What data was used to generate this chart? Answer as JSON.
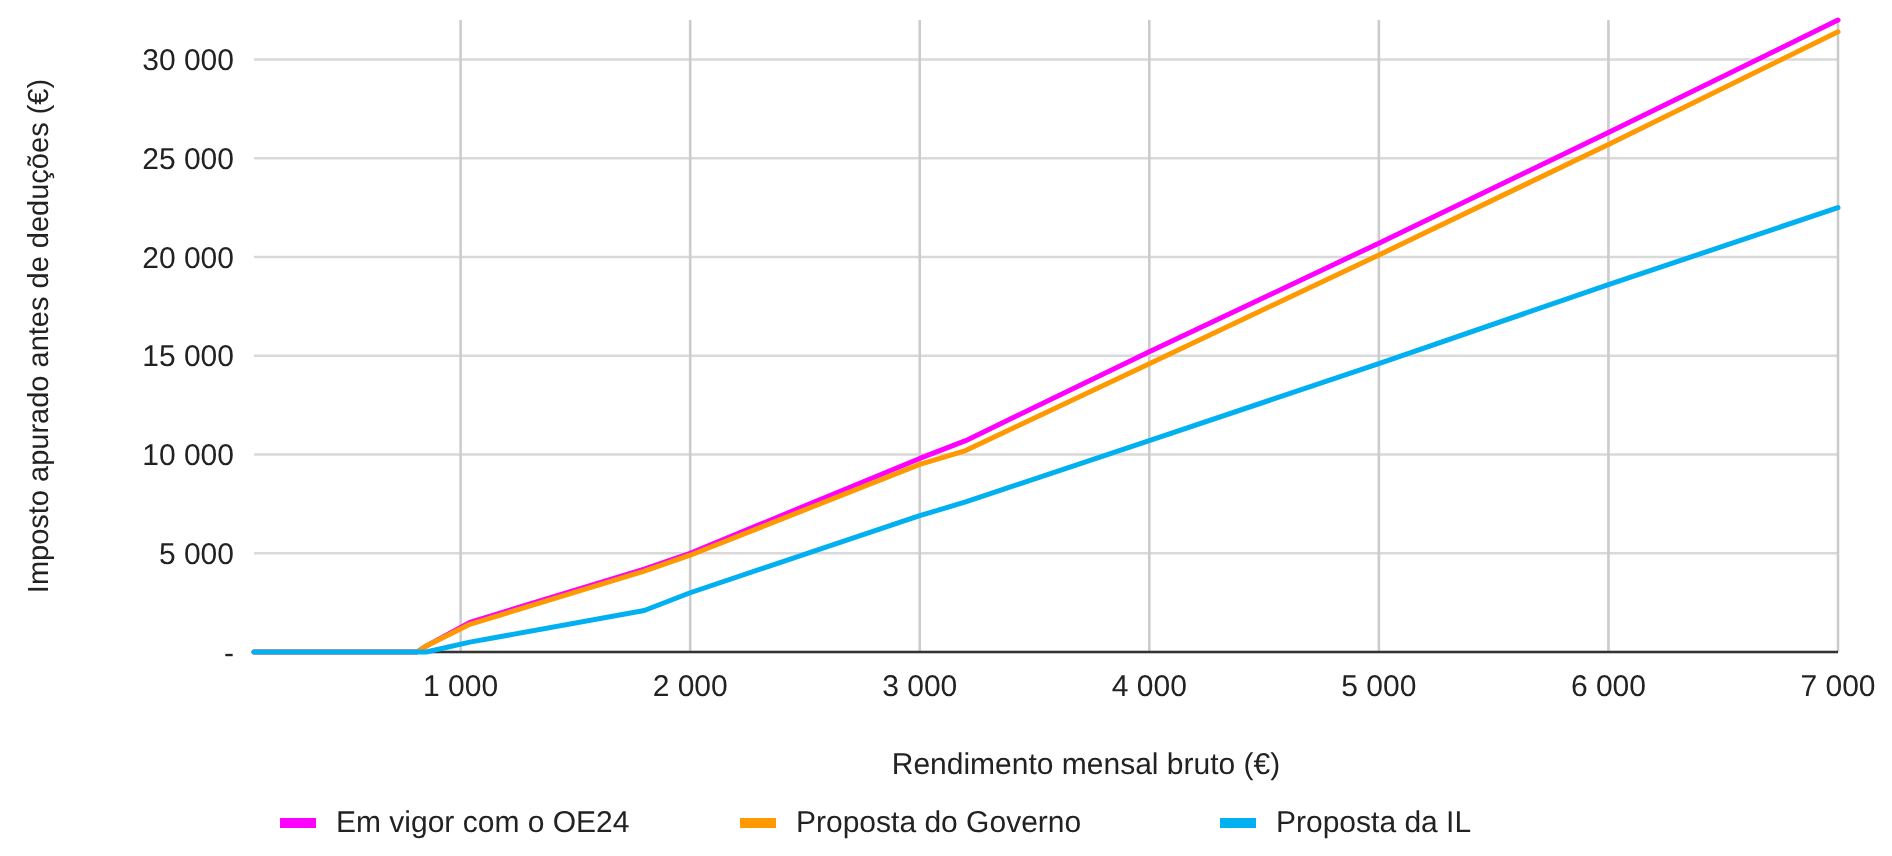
{
  "chart_data": {
    "type": "line",
    "xlabel": "Rendimento mensal bruto (€)",
    "ylabel": "Imposto apurado antes de deduções (€)",
    "x": [
      100,
      810,
      850,
      1040,
      1800,
      2000,
      3000,
      3200,
      4000,
      5000,
      6000,
      7000
    ],
    "series": [
      {
        "name": "Em vigor com o OE24",
        "color": "#ff00ff",
        "values": [
          0,
          0,
          300,
          1500,
          4200,
          5000,
          9800,
          10700,
          15200,
          20700,
          26300,
          32000
        ]
      },
      {
        "name": "Proposta do Governo",
        "color": "#ff9900",
        "values": [
          0,
          0,
          300,
          1400,
          4100,
          4900,
          9500,
          10200,
          14600,
          20100,
          25700,
          31400
        ]
      },
      {
        "name": "Proposta da IL",
        "color": "#00b0f0",
        "values": [
          0,
          0,
          0,
          500,
          2100,
          3000,
          6900,
          7600,
          10700,
          14600,
          18600,
          22500
        ]
      }
    ],
    "xlim": [
      100,
      7000
    ],
    "xticks": [
      {
        "value": 1000,
        "label": "1 000"
      },
      {
        "value": 2000,
        "label": "2 000"
      },
      {
        "value": 3000,
        "label": "3 000"
      },
      {
        "value": 4000,
        "label": "4 000"
      },
      {
        "value": 5000,
        "label": "5 000"
      },
      {
        "value": 6000,
        "label": "6 000"
      },
      {
        "value": 7000,
        "label": "7 000"
      }
    ],
    "ylim": [
      0,
      32000
    ],
    "yticks": [
      {
        "value": 0,
        "label": "-"
      },
      {
        "value": 5000,
        "label": "5 000"
      },
      {
        "value": 10000,
        "label": "10 000"
      },
      {
        "value": 15000,
        "label": "15 000"
      },
      {
        "value": 20000,
        "label": "20 000"
      },
      {
        "value": 25000,
        "label": "25 000"
      },
      {
        "value": 30000,
        "label": "30 000"
      }
    ],
    "grid": true,
    "legend": "bottom",
    "line_style": "solid",
    "marker": "none"
  }
}
